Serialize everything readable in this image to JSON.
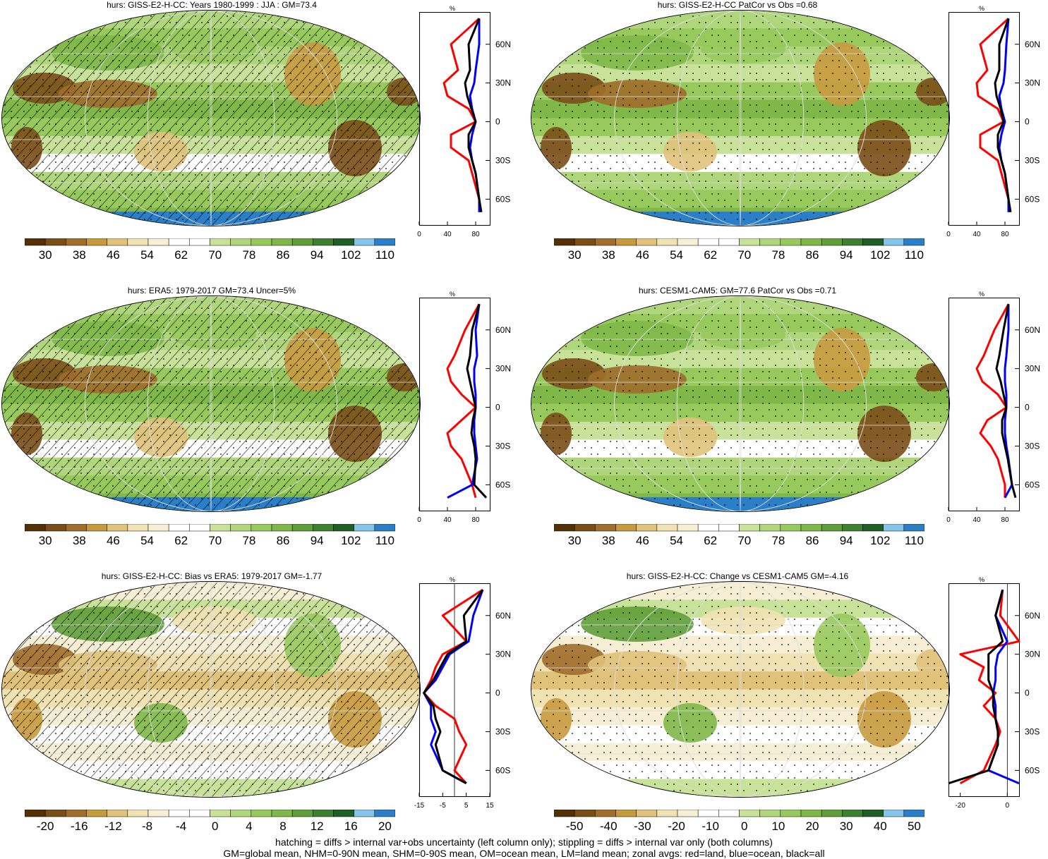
{
  "panels": [
    {
      "title": "hurs: GISS-E2-H-CC: Years 1980-1999 : JJA : GM=73.4",
      "hatched": true,
      "colorbar": [
        "30",
        "38",
        "46",
        "54",
        "62",
        "70",
        "78",
        "86",
        "94",
        "102",
        "110"
      ],
      "palette": "hurs",
      "zonal_unit": "%",
      "zonal_xticks": [
        "0",
        "40",
        "80"
      ]
    },
    {
      "title": "hurs: GISS-E2-H-CC PatCor vs Obs =0.68",
      "hatched": false,
      "colorbar": [
        "30",
        "38",
        "46",
        "54",
        "62",
        "70",
        "78",
        "86",
        "94",
        "102",
        "110"
      ],
      "palette": "hurs",
      "zonal_unit": "%",
      "zonal_xticks": [
        "0",
        "40",
        "80"
      ]
    },
    {
      "title": "hurs: ERA5: 1979-2017 GM=73.4 Uncer=5%",
      "hatched": true,
      "colorbar": [
        "30",
        "38",
        "46",
        "54",
        "62",
        "70",
        "78",
        "86",
        "94",
        "102",
        "110"
      ],
      "palette": "hurs",
      "zonal_unit": "%",
      "zonal_xticks": [
        "0",
        "40",
        "80"
      ]
    },
    {
      "title": "hurs: CESM1-CAM5: GM=77.6 PatCor vs Obs =0.71",
      "hatched": false,
      "colorbar": [
        "30",
        "38",
        "46",
        "54",
        "62",
        "70",
        "78",
        "86",
        "94",
        "102",
        "110"
      ],
      "palette": "hurs",
      "zonal_unit": "%",
      "zonal_xticks": [
        "0",
        "40",
        "80"
      ]
    },
    {
      "title": "hurs: GISS-E2-H-CC: Bias vs ERA5: 1979-2017 GM=-1.77",
      "hatched": true,
      "colorbar": [
        "-20",
        "-16",
        "-12",
        "-8",
        "-4",
        "0",
        "4",
        "8",
        "12",
        "16",
        "20"
      ],
      "palette": "diff",
      "zonal_unit": "%",
      "zonal_xticks": [
        "-15",
        "-5",
        "5",
        "15"
      ]
    },
    {
      "title": "hurs: GISS-E2-H-CC: Change vs CESM1-CAM5 GM=-4.16",
      "hatched": false,
      "colorbar": [
        "-50",
        "-40",
        "-30",
        "-20",
        "-10",
        "0",
        "10",
        "20",
        "30",
        "40",
        "50"
      ],
      "palette": "diff",
      "zonal_unit": "%",
      "zonal_xticks": [
        "-20",
        "0"
      ]
    }
  ],
  "lat_ticks": [
    "60N",
    "30N",
    "0",
    "30S",
    "60S"
  ],
  "colors": {
    "land": "#ff0000",
    "ocean": "#0000ff",
    "all": "#000000",
    "hurs_palette": [
      "#543005",
      "#7a4e17",
      "#a06d2b",
      "#c89a3e",
      "#e0c27b",
      "#f1e2b3",
      "#f6efd6",
      "#ffffff",
      "#ffffff",
      "#c8e29a",
      "#b0d67b",
      "#98c95d",
      "#7fb848",
      "#5f9e38",
      "#3d8032",
      "#1f5f25",
      "#86c5ea",
      "#2b7fc9"
    ],
    "diff_palette": [
      "#543005",
      "#7a4e17",
      "#a06d2b",
      "#c89a3e",
      "#e0c27b",
      "#f1e2b3",
      "#f6efd6",
      "#ffffff",
      "#ffffff",
      "#c8e29a",
      "#b0d67b",
      "#98c95d",
      "#7fb848",
      "#5f9e38",
      "#3d8032",
      "#1f5f25",
      "#86c5ea",
      "#2b7fc9"
    ]
  },
  "chart_data": [
    {
      "type": "heatmap",
      "title": "hurs: GISS-E2-H-CC: Years 1980-1999 : JJA : GM=73.4",
      "zonal_series": [
        {
          "name": "land",
          "lat": [
            80,
            60,
            40,
            30,
            20,
            10,
            0,
            -10,
            -20,
            -30,
            -40,
            -60,
            -70
          ],
          "values": [
            85,
            45,
            55,
            35,
            40,
            70,
            80,
            45,
            45,
            70,
            75,
            85,
            85
          ]
        },
        {
          "name": "ocean",
          "lat": [
            80,
            60,
            40,
            30,
            20,
            10,
            0,
            -10,
            -20,
            -30,
            -40,
            -60,
            -70
          ],
          "values": [
            85,
            85,
            80,
            78,
            72,
            75,
            80,
            75,
            72,
            75,
            80,
            85,
            85
          ]
        },
        {
          "name": "all",
          "lat": [
            80,
            60,
            40,
            30,
            20,
            10,
            0,
            -10,
            -20,
            -30,
            -40,
            -60,
            -70
          ],
          "values": [
            85,
            70,
            72,
            65,
            68,
            74,
            80,
            70,
            70,
            75,
            80,
            85,
            88
          ]
        }
      ]
    },
    {
      "type": "heatmap",
      "title": "hurs: GISS-E2-H-CC PatCor vs Obs =0.68",
      "zonal_series": [
        {
          "name": "land",
          "lat": [
            80,
            60,
            40,
            30,
            20,
            10,
            0,
            -10,
            -20,
            -30,
            -40,
            -60,
            -70
          ],
          "values": [
            85,
            45,
            55,
            40,
            42,
            70,
            78,
            45,
            45,
            70,
            75,
            85,
            85
          ]
        },
        {
          "name": "ocean",
          "lat": [
            80,
            60,
            40,
            30,
            20,
            10,
            0,
            -10,
            -20,
            -30,
            -40,
            -60,
            -70
          ],
          "values": [
            85,
            82,
            80,
            78,
            72,
            75,
            80,
            75,
            72,
            75,
            80,
            85,
            85
          ]
        },
        {
          "name": "all",
          "lat": [
            80,
            60,
            40,
            30,
            20,
            10,
            0,
            -10,
            -20,
            -30,
            -40,
            -60,
            -70
          ],
          "values": [
            85,
            72,
            72,
            66,
            68,
            74,
            78,
            70,
            70,
            75,
            80,
            85,
            88
          ]
        }
      ]
    },
    {
      "type": "heatmap",
      "title": "hurs: ERA5: 1979-2017 GM=73.4 Uncer=5%",
      "zonal_series": [
        {
          "name": "land",
          "lat": [
            80,
            60,
            40,
            30,
            20,
            10,
            0,
            -10,
            -20,
            -30,
            -40,
            -60,
            -70
          ],
          "values": [
            85,
            65,
            50,
            40,
            45,
            60,
            80,
            60,
            40,
            45,
            60,
            75,
            80
          ]
        },
        {
          "name": "ocean",
          "lat": [
            80,
            60,
            40,
            30,
            20,
            10,
            0,
            -10,
            -20,
            -30,
            -40,
            -60,
            -70
          ],
          "values": [
            85,
            80,
            82,
            78,
            78,
            80,
            80,
            78,
            78,
            80,
            82,
            75,
            40
          ]
        },
        {
          "name": "all",
          "lat": [
            80,
            60,
            40,
            30,
            20,
            10,
            0,
            -10,
            -20,
            -30,
            -40,
            -60,
            -70
          ],
          "values": [
            85,
            75,
            72,
            68,
            72,
            76,
            80,
            76,
            74,
            78,
            80,
            78,
            95
          ]
        }
      ]
    },
    {
      "type": "heatmap",
      "title": "hurs: CESM1-CAM5: GM=77.6 PatCor vs Obs =0.71",
      "zonal_series": [
        {
          "name": "land",
          "lat": [
            80,
            60,
            40,
            30,
            20,
            10,
            0,
            -10,
            -20,
            -30,
            -40,
            -60,
            -70
          ],
          "values": [
            85,
            65,
            50,
            40,
            48,
            70,
            82,
            55,
            45,
            60,
            70,
            80,
            80
          ]
        },
        {
          "name": "ocean",
          "lat": [
            80,
            60,
            40,
            30,
            20,
            10,
            0,
            -10,
            -20,
            -30,
            -40,
            -60,
            -70
          ],
          "values": [
            85,
            85,
            82,
            80,
            80,
            82,
            82,
            80,
            80,
            82,
            85,
            90,
            80
          ]
        },
        {
          "name": "all",
          "lat": [
            80,
            60,
            40,
            30,
            20,
            10,
            0,
            -10,
            -20,
            -30,
            -40,
            -60,
            -70
          ],
          "values": [
            85,
            78,
            72,
            68,
            74,
            78,
            82,
            76,
            76,
            80,
            84,
            90,
            95
          ]
        }
      ]
    },
    {
      "type": "heatmap",
      "title": "hurs: GISS-E2-H-CC: Bias vs ERA5: 1979-2017 GM=-1.77",
      "zonal_series": [
        {
          "name": "land",
          "lat": [
            80,
            60,
            40,
            30,
            20,
            10,
            0,
            -10,
            -20,
            -30,
            -40,
            -60,
            -70
          ],
          "values": [
            12,
            -5,
            5,
            -5,
            -8,
            -10,
            -13,
            -8,
            0,
            2,
            5,
            0,
            5
          ]
        },
        {
          "name": "ocean",
          "lat": [
            80,
            60,
            40,
            30,
            20,
            10,
            0,
            -10,
            -20,
            -30,
            -40,
            -60,
            -70
          ],
          "values": [
            12,
            8,
            6,
            -2,
            -5,
            -8,
            -13,
            -10,
            -10,
            -8,
            -10,
            -5,
            5
          ]
        },
        {
          "name": "all",
          "lat": [
            80,
            60,
            40,
            30,
            20,
            10,
            0,
            -10,
            -20,
            -30,
            -40,
            -60,
            -70
          ],
          "values": [
            12,
            4,
            5,
            -3,
            -6,
            -9,
            -13,
            -9,
            -8,
            -6,
            -8,
            -5,
            5
          ]
        }
      ]
    },
    {
      "type": "heatmap",
      "title": "hurs: GISS-E2-H-CC: Change vs CESM1-CAM5 GM=-4.16",
      "zonal_series": [
        {
          "name": "land",
          "lat": [
            80,
            60,
            40,
            30,
            20,
            10,
            0,
            -10,
            -20,
            -30,
            -40,
            -60,
            -70
          ],
          "values": [
            -2,
            -3,
            5,
            -20,
            -10,
            -12,
            -5,
            -10,
            -5,
            -3,
            -5,
            -10,
            -20
          ]
        },
        {
          "name": "ocean",
          "lat": [
            80,
            60,
            40,
            30,
            20,
            10,
            0,
            -10,
            -20,
            -30,
            -40,
            -60,
            -70
          ],
          "values": [
            -2,
            -5,
            0,
            -4,
            -5,
            -5,
            -6,
            -5,
            -5,
            -4,
            -4,
            -8,
            5
          ]
        },
        {
          "name": "all",
          "lat": [
            80,
            60,
            40,
            30,
            20,
            10,
            0,
            -10,
            -20,
            -30,
            -40,
            -60,
            -70
          ],
          "values": [
            -2,
            -5,
            -2,
            -8,
            -8,
            -8,
            -6,
            -6,
            -5,
            -4,
            -4,
            -8,
            -25
          ]
        }
      ]
    }
  ],
  "footer": {
    "line1": "hatching = diffs > internal var+obs uncertainty (left column only); stippling = diffs > internal var only (both columns)",
    "line2": "GM=global mean, NHM=0-90N mean, SHM=0-90S mean, OM=ocean mean, LM=land mean; zonal avgs: red=land, blue=ocean, black=all"
  }
}
